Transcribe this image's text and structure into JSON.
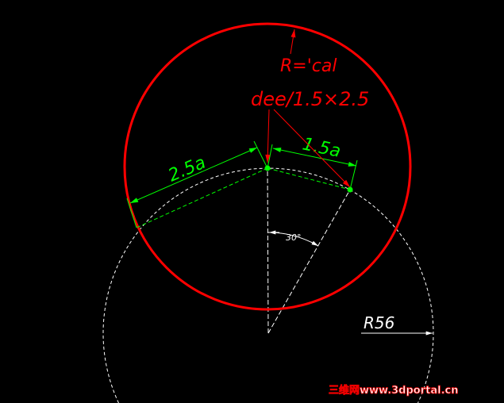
{
  "labels": {
    "radius_formula": "R='cal",
    "dee_formula": "dee/1.5×2.5",
    "dim_left": "2.5a",
    "dim_right": "1.5a",
    "angle": "30°",
    "radius": "R56"
  },
  "watermark": "三维网www.3dportal.cn",
  "colors": {
    "background": "#000000",
    "red": "#ff0000",
    "green": "#00ff00",
    "white": "#ffffff"
  }
}
